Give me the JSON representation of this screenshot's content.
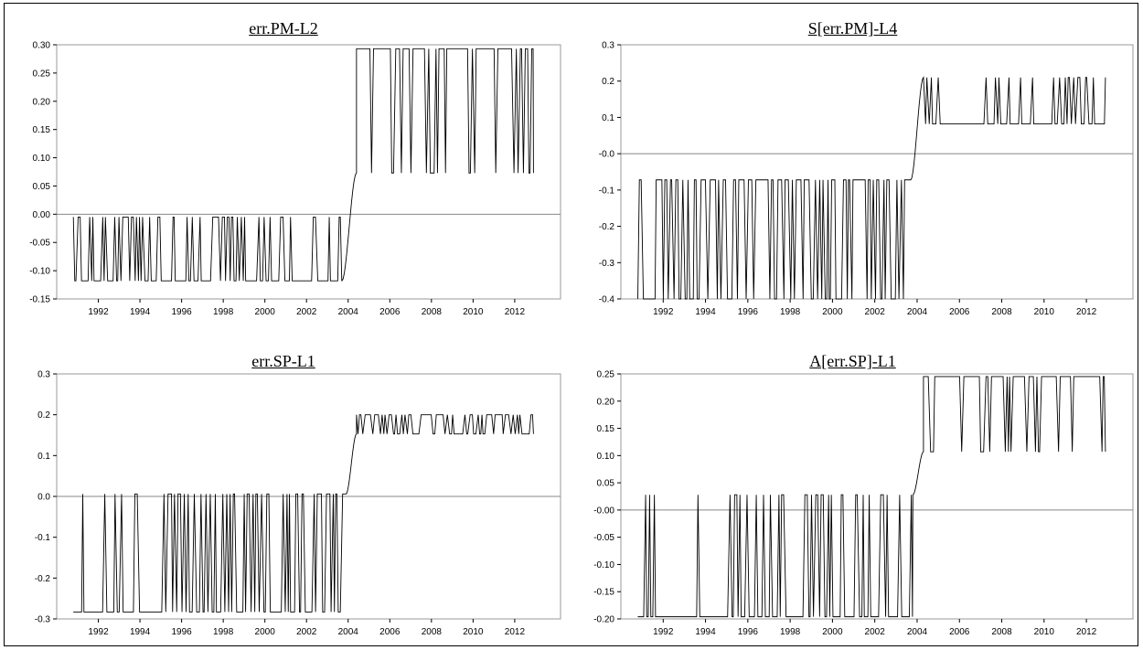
{
  "figure": {
    "panels": [
      {
        "title": "err.PM-L2"
      },
      {
        "title": "S[err.PM]-L4"
      },
      {
        "title": "err.SP-L1"
      },
      {
        "title": "A[err.SP]-L1"
      }
    ]
  },
  "chart_data": [
    {
      "type": "line",
      "title": "err.PM-L2",
      "xlabel": "",
      "ylabel": "",
      "xlim": [
        1990.0,
        2014.2
      ],
      "ylim": [
        -0.15,
        0.3
      ],
      "x_ticks": [
        1992,
        1994,
        1996,
        1998,
        2000,
        2002,
        2004,
        2006,
        2008,
        2010,
        2012
      ],
      "y_ticks": [
        -0.15,
        -0.1,
        -0.05,
        0.0,
        0.05,
        0.1,
        0.15,
        0.2,
        0.25,
        0.3
      ],
      "y_tick_labels": [
        "-0.15",
        "-0.10",
        "-0.05",
        "0.00",
        "0.05",
        "0.10",
        "0.15",
        "0.20",
        "0.25",
        "0.30"
      ],
      "zero_line": 0.0,
      "grid": false,
      "series": [
        {
          "regime1": {
            "x": [
              1990.8,
              2003.7
            ],
            "base": -0.118,
            "spike": -0.005
          },
          "transition": {
            "x": [
              2003.7,
              2004.4
            ]
          },
          "regime2": {
            "x": [
              2004.4,
              2012.9
            ],
            "base": 0.073,
            "spike": 0.293
          },
          "regime1_density": 0.35,
          "regime2_density": 0.8,
          "seed": 11
        }
      ]
    },
    {
      "type": "line",
      "title": "S[err.PM]-L4",
      "xlabel": "",
      "ylabel": "",
      "xlim": [
        1990.0,
        2014.2
      ],
      "ylim": [
        -0.4,
        0.3
      ],
      "x_ticks": [
        1992,
        1994,
        1996,
        1998,
        2000,
        2002,
        2004,
        2006,
        2008,
        2010,
        2012
      ],
      "y_ticks": [
        -0.4,
        -0.3,
        -0.2,
        -0.1,
        0.0,
        0.1,
        0.2,
        0.3
      ],
      "y_tick_labels": [
        "-0.4",
        "-0.3",
        "-0.2",
        "-0.1",
        "-0.0",
        "0.1",
        "0.2",
        "0.3"
      ],
      "zero_line": 0.0,
      "grid": false,
      "series": [
        {
          "regime1": {
            "x": [
              1990.8,
              2003.7
            ],
            "base": -0.072,
            "spike": -0.4
          },
          "transition": {
            "x": [
              2003.7,
              2004.3
            ]
          },
          "regime2": {
            "x": [
              2004.3,
              2012.9
            ],
            "base": 0.21,
            "spike": 0.082
          },
          "regime1_density": 0.3,
          "regime2_density": 0.75,
          "seed": 23
        }
      ]
    },
    {
      "type": "line",
      "title": "err.SP-L1",
      "xlabel": "",
      "ylabel": "",
      "xlim": [
        1990.0,
        2014.2
      ],
      "ylim": [
        -0.3,
        0.3
      ],
      "x_ticks": [
        1992,
        1994,
        1996,
        1998,
        2000,
        2002,
        2004,
        2006,
        2008,
        2010,
        2012
      ],
      "y_ticks": [
        -0.3,
        -0.2,
        -0.1,
        0.0,
        0.1,
        0.2,
        0.3
      ],
      "y_tick_labels": [
        "-0.3",
        "-0.2",
        "-0.1",
        "0.0",
        "0.1",
        "0.2",
        "0.3"
      ],
      "zero_line": 0.0,
      "grid": false,
      "series": [
        {
          "regime1": {
            "x": [
              1990.8,
              2003.9
            ],
            "base": 0.006,
            "spike": -0.283
          },
          "transition": {
            "x": [
              2003.9,
              2004.4
            ]
          },
          "regime2": {
            "x": [
              2004.4,
              2012.9
            ],
            "base": 0.153,
            "spike": 0.2
          },
          "regime1_density": 0.65,
          "regime2_density": 0.55,
          "seed": 37
        }
      ]
    },
    {
      "type": "line",
      "title": "A[err.SP]-L1",
      "xlabel": "",
      "ylabel": "",
      "xlim": [
        1990.0,
        2014.2
      ],
      "ylim": [
        -0.2,
        0.25
      ],
      "x_ticks": [
        1992,
        1994,
        1996,
        1998,
        2000,
        2002,
        2004,
        2006,
        2008,
        2010,
        2012
      ],
      "y_ticks": [
        -0.2,
        -0.15,
        -0.1,
        -0.05,
        0.0,
        0.05,
        0.1,
        0.15,
        0.2,
        0.25
      ],
      "y_tick_labels": [
        "-0.20",
        "-0.15",
        "-0.10",
        "-0.05",
        "-0.00",
        "0.05",
        "0.10",
        "0.15",
        "0.20",
        "0.25"
      ],
      "zero_line": 0.0,
      "grid": false,
      "series": [
        {
          "regime1": {
            "x": [
              1990.8,
              2003.8
            ],
            "base": 0.028,
            "spike": -0.196
          },
          "transition": {
            "x": [
              2003.8,
              2004.3
            ]
          },
          "regime2": {
            "x": [
              2004.3,
              2012.9
            ],
            "base": 0.107,
            "spike": 0.245
          },
          "regime1_density": 0.8,
          "regime2_density": 0.8,
          "seed": 53
        }
      ]
    }
  ]
}
